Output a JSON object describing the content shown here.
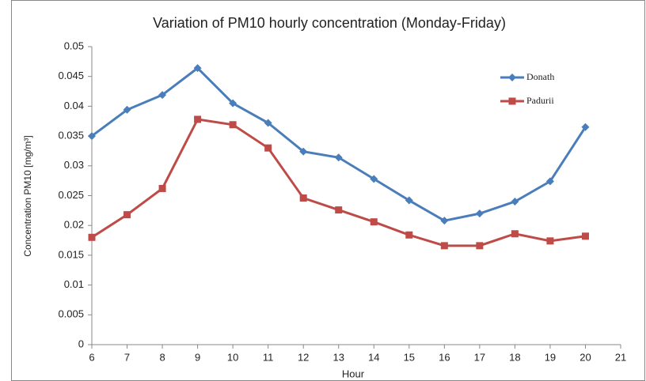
{
  "chart_data": {
    "type": "line",
    "title": "Variation of PM10 hourly concentration (Monday-Friday)",
    "x_label": "Hour",
    "y_label": "Concentration PM10 [mg/m³]",
    "x": [
      6,
      7,
      8,
      9,
      10,
      11,
      12,
      13,
      14,
      15,
      16,
      17,
      18,
      19,
      20
    ],
    "series": [
      {
        "name": "Donath",
        "color": "#4a7ebb",
        "marker": "diamond",
        "values": [
          0.035,
          0.0394,
          0.0419,
          0.0464,
          0.0405,
          0.0372,
          0.0324,
          0.0314,
          0.0278,
          0.0242,
          0.0208,
          0.022,
          0.024,
          0.0274,
          0.0365
        ]
      },
      {
        "name": "Padurii",
        "color": "#be4b48",
        "marker": "square",
        "values": [
          0.018,
          0.0218,
          0.0262,
          0.0378,
          0.0369,
          0.033,
          0.0246,
          0.0226,
          0.0206,
          0.0184,
          0.0166,
          0.0166,
          0.0186,
          0.0174,
          0.0182
        ]
      }
    ],
    "xlim": [
      6,
      21
    ],
    "xticks": [
      6,
      7,
      8,
      9,
      10,
      11,
      12,
      13,
      14,
      15,
      16,
      17,
      18,
      19,
      20,
      21
    ],
    "ylim": [
      0,
      0.05
    ],
    "yticks": [
      0,
      0.005,
      0.01,
      0.015,
      0.02,
      0.025,
      0.03,
      0.035,
      0.04,
      0.045,
      0.05
    ],
    "legend": "upper right",
    "grid": false
  }
}
